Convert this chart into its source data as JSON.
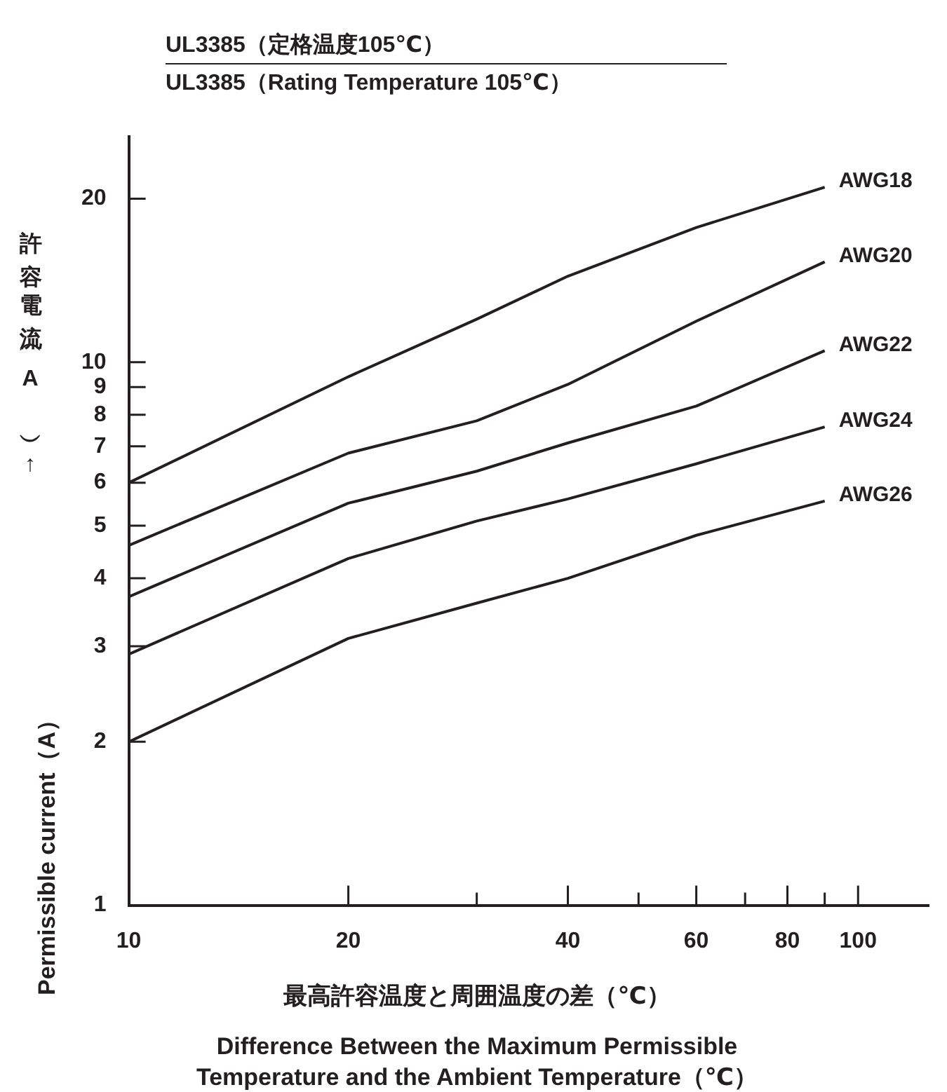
{
  "chart_data": {
    "type": "line",
    "title": "UL3385（定格温度105℃）",
    "subtitle": "UL3385（Rating Temperature 105℃）",
    "xlabel": "最高許容温度と周囲温度の差（℃）\nDifference Between the Maximum Permissible\nTemperature and the Ambient Temperature（℃）",
    "ylabel": "Permissible current（A）",
    "annotations": [
      "許容電流（A）↑"
    ],
    "log": "xy",
    "marker": "none",
    "x": [
      10,
      20,
      30,
      40,
      60,
      90
    ],
    "series": [
      {
        "name": "AWG18",
        "color": "#231f20",
        "values": [
          6,
          9.4,
          12,
          14.4,
          17.7,
          21
        ]
      },
      {
        "name": "AWG20",
        "color": "#231f20",
        "values": [
          4.6,
          6.8,
          7.8,
          9.1,
          11.9,
          15.3
        ]
      },
      {
        "name": "AWG22",
        "color": "#231f20",
        "values": [
          3.7,
          5.5,
          6.3,
          7.1,
          8.3,
          10.5
        ]
      },
      {
        "name": "AWG24",
        "color": "#231f20",
        "values": [
          2.9,
          4.35,
          5.1,
          5.6,
          6.5,
          7.6
        ]
      },
      {
        "name": "AWG26",
        "color": "#231f20",
        "values": [
          2,
          3.1,
          3.6,
          4,
          4.8,
          5.55
        ]
      }
    ],
    "xlim": [
      10,
      125
    ],
    "ylim": [
      1,
      26
    ],
    "xticks": [
      10,
      20,
      {
        "value": 30,
        "label": null
      },
      40,
      {
        "value": 50,
        "label": null
      },
      60,
      {
        "value": 70,
        "label": null
      },
      80,
      {
        "value": 90,
        "label": null
      },
      100
    ],
    "yticks": [
      1,
      2,
      3,
      4,
      5,
      6,
      7,
      8,
      9,
      10,
      20
    ],
    "grid": false
  }
}
